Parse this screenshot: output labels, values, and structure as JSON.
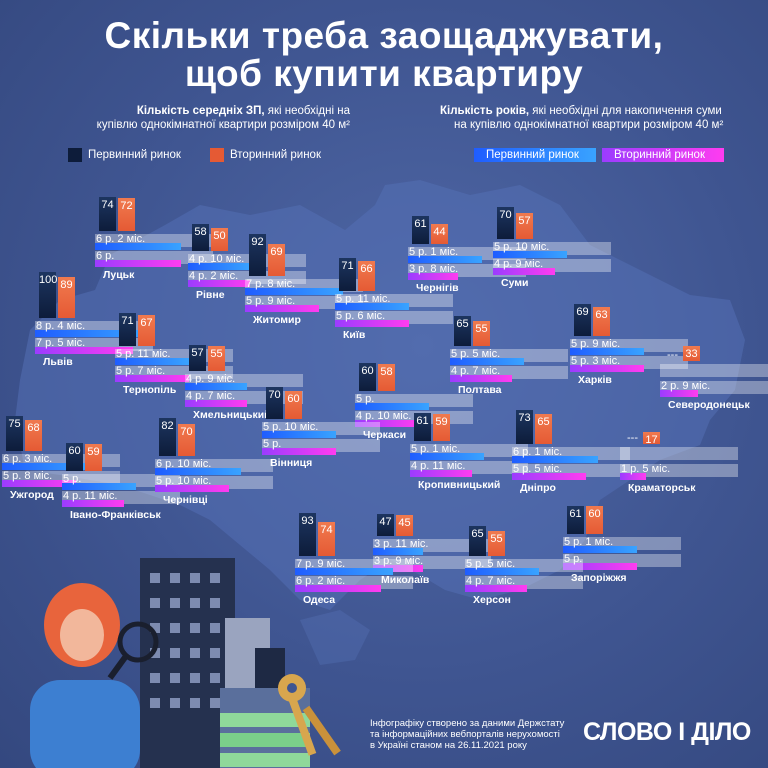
{
  "title": {
    "line1": "Скільки треба заощаджувати,",
    "line2": "щоб купити квартиру"
  },
  "legend_left": {
    "bold": "Кількість середніх ЗП,",
    "rest": " які необхідні на",
    "line2": "купівлю однокімнатної квартири розміром 40 м²",
    "primary": "Первинний ринок",
    "secondary": "Вторинний ринок"
  },
  "legend_right": {
    "bold": "Кількість років,",
    "rest": " які необхідні для накопичення суми",
    "line2": "на купівлю однокімнатної квартири розміром 40 м²",
    "primary": "Первинний ринок",
    "secondary": "Вторинний ринок"
  },
  "colors": {
    "primary_bar": "#0d1c3a",
    "secondary_bar": "#e55a34",
    "primary_years": "#1f5dff",
    "secondary_years": "#c03cff"
  },
  "cities": [
    {
      "name": "Луцьк",
      "salaries": [
        "74",
        "72"
      ],
      "years": [
        "6 р. 2 міс.",
        "6 р."
      ]
    },
    {
      "name": "Рівне",
      "salaries": [
        "58",
        "50"
      ],
      "years": [
        "4 р. 10 міс.",
        "4 р. 2 міс."
      ]
    },
    {
      "name": "Житомир",
      "salaries": [
        "92",
        "69"
      ],
      "years": [
        "7 р. 8 міс.",
        "5 р. 9 міс."
      ]
    },
    {
      "name": "Київ",
      "salaries": [
        "71",
        "66"
      ],
      "years": [
        "5 р. 11 міс.",
        "5 р. 6 міс."
      ]
    },
    {
      "name": "Чернігів",
      "salaries": [
        "61",
        "44"
      ],
      "years": [
        "5 р. 1 міс.",
        "3 р. 8 міс."
      ]
    },
    {
      "name": "Суми",
      "salaries": [
        "70",
        "57"
      ],
      "years": [
        "5 р. 10 міс.",
        "4 р. 9 міс."
      ]
    },
    {
      "name": "Львів",
      "salaries": [
        "100",
        "89"
      ],
      "years": [
        "8 р. 4 міс.",
        "7 р. 5 міс."
      ]
    },
    {
      "name": "Тернопіль",
      "salaries": [
        "71",
        "67"
      ],
      "years": [
        "5 р. 11 міс.",
        "5 р. 7 міс."
      ]
    },
    {
      "name": "Хмельницький",
      "salaries": [
        "57",
        "55"
      ],
      "years": [
        "4 р. 9 міс.",
        "4 р. 7 міс."
      ]
    },
    {
      "name": "Полтава",
      "salaries": [
        "65",
        "55"
      ],
      "years": [
        "5 р. 5 міс.",
        "4 р. 7 міс."
      ]
    },
    {
      "name": "Харків",
      "salaries": [
        "69",
        "63"
      ],
      "years": [
        "5 р. 9 міс.",
        "5 р. 3 міс."
      ]
    },
    {
      "name": "Северодонецьк",
      "salaries": [
        "---",
        "33"
      ],
      "years": [
        "",
        "2 р. 9 міс."
      ]
    },
    {
      "name": "Черкаси",
      "salaries": [
        "60",
        "58"
      ],
      "years": [
        "5 р.",
        "4 р. 10 міс."
      ]
    },
    {
      "name": "Вінниця",
      "salaries": [
        "70",
        "60"
      ],
      "years": [
        "5 р. 10 міс.",
        "5 р."
      ]
    },
    {
      "name": "Ужгород",
      "salaries": [
        "75",
        "68"
      ],
      "years": [
        "6 р. 3 міс.",
        "5 р. 8 міс."
      ]
    },
    {
      "name": "Івано-Франківськ",
      "salaries": [
        "60",
        "59"
      ],
      "years": [
        "5 р.",
        "4 р. 11 міс."
      ]
    },
    {
      "name": "Чернівці",
      "salaries": [
        "82",
        "70"
      ],
      "years": [
        "6 р. 10 міс.",
        "5 р. 10 міс."
      ]
    },
    {
      "name": "Кропивницький",
      "salaries": [
        "61",
        "59"
      ],
      "years": [
        "5 р. 1 міс.",
        "4 р. 11 міс."
      ]
    },
    {
      "name": "Дніпро",
      "salaries": [
        "73",
        "65"
      ],
      "years": [
        "6 р. 1 міс.",
        "5 р. 5 міс."
      ]
    },
    {
      "name": "Краматорськ",
      "salaries": [
        "---",
        "17"
      ],
      "years": [
        "",
        "1 р. 5 міс."
      ]
    },
    {
      "name": "Запоріжжя",
      "salaries": [
        "61",
        "60"
      ],
      "years": [
        "5 р. 1 міс.",
        "5 р."
      ]
    },
    {
      "name": "Миколаїв",
      "salaries": [
        "47",
        "45"
      ],
      "years": [
        "3 р. 11 міс.",
        "3 р. 9 міс."
      ]
    },
    {
      "name": "Херсон",
      "salaries": [
        "65",
        "55"
      ],
      "years": [
        "5 р. 5 міс.",
        "4 р. 7 міс."
      ]
    },
    {
      "name": "Одеса",
      "salaries": [
        "93",
        "74"
      ],
      "years": [
        "7 р. 9 міс.",
        "6 р. 2 міс."
      ]
    }
  ],
  "footer_note": [
    "Інфографіку створено за даними Держстату",
    "та інформаційних вебпорталів нерухомості",
    "в Україні станом на 26.11.2021 року"
  ],
  "logo": "СЛОВО І ДІЛО"
}
